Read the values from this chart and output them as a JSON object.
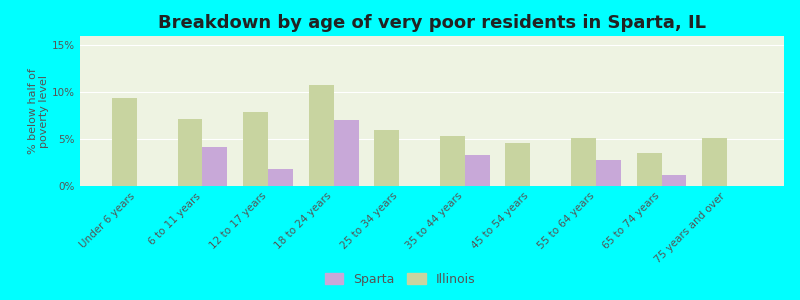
{
  "title": "Breakdown by age of very poor residents in Sparta, IL",
  "ylabel": "% below half of\npoverty level",
  "categories": [
    "Under 6 years",
    "6 to 11 years",
    "12 to 17 years",
    "18 to 24 years",
    "25 to 34 years",
    "35 to 44 years",
    "45 to 54 years",
    "55 to 64 years",
    "65 to 74 years",
    "75 years and over"
  ],
  "sparta_values": [
    0,
    4.2,
    1.8,
    7.0,
    0,
    3.3,
    0,
    2.8,
    1.2,
    0
  ],
  "illinois_values": [
    9.4,
    7.2,
    7.9,
    10.8,
    6.0,
    5.3,
    4.6,
    5.1,
    3.5,
    5.1
  ],
  "sparta_color": "#c8a8d8",
  "illinois_color": "#c8d4a0",
  "background_color": "#00ffff",
  "plot_bg_color": "#eef3e2",
  "ylim_max": 16,
  "yticks": [
    0,
    5,
    10,
    15
  ],
  "ytick_labels": [
    "0%",
    "5%",
    "10%",
    "15%"
  ],
  "title_fontsize": 13,
  "axis_label_fontsize": 8,
  "tick_fontsize": 7.5,
  "legend_sparta": "Sparta",
  "legend_illinois": "Illinois",
  "bar_width": 0.38
}
